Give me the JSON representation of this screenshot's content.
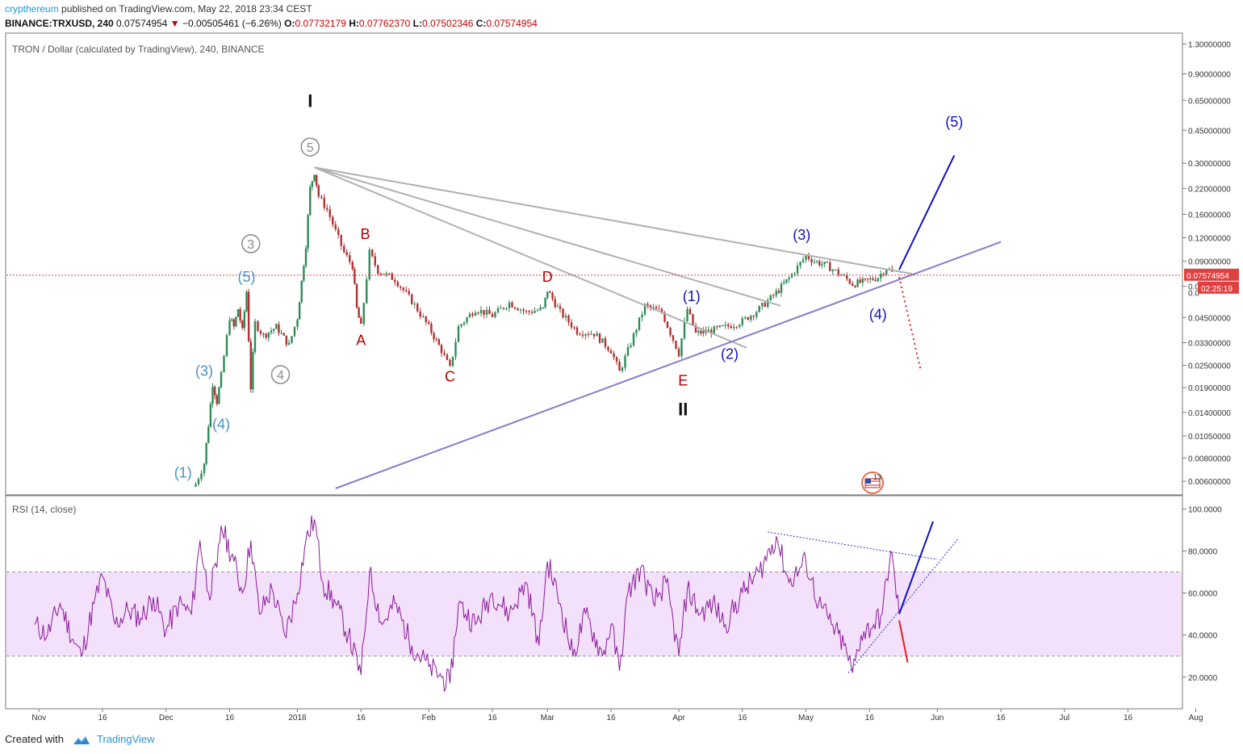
{
  "header": {
    "author": "crypthereum",
    "published_text": " published on TradingView.com, May 22, 2018 23:34 CEST",
    "symbol": "BINANCE:TRXUSD, 240",
    "price": "0.07574954",
    "change": "−0.00505461 (−6.26%)",
    "open_label": "O:",
    "open_value": "0.07732179",
    "high_label": "H:",
    "high_value": "0.07762370",
    "low_label": "L:",
    "low_value": "0.07502346",
    "close_label": "C:",
    "close_value": "0.07574954"
  },
  "footer": {
    "created_with": "Created with",
    "brand": "TradingView"
  },
  "colors": {
    "up": "#2e8b57",
    "down": "#b03030",
    "purple_line": "#8a7cc8",
    "gray_line": "#b0b0b0",
    "blue": "#1010c0",
    "red_label": "#b00000",
    "gray_label": "#8a8a8a",
    "light_blue": "#4a90c8",
    "rsi_line": "#8a1a9a",
    "rsi_band": "#f3e0fa",
    "price_line": "#e04040"
  },
  "chart_data": [
    {
      "type": "candlestick",
      "title": "TRON / Dollar (calculated by TradingView), 240, BINANCE",
      "scale": "log",
      "ylim": [
        0.0055,
        1.4
      ],
      "x_ticks": [
        "Nov",
        "16",
        "Dec",
        "16",
        "2018",
        "16",
        "Feb",
        "16",
        "Mar",
        "16",
        "Apr",
        "16",
        "May",
        "16",
        "Jun",
        "16",
        "Jul",
        "16",
        "Aug"
      ],
      "y_ticks": [
        "1.30000000",
        "0.90000000",
        "0.65000000",
        "0.45000000",
        "0.30000000",
        "0.22000000",
        "0.16000000",
        "0.12000000",
        "0.09000000",
        "0.06600000",
        "0.04500000",
        "0.03300000",
        "0.02500000",
        "0.01900000",
        "0.01400000",
        "0.01050000",
        "0.00800000",
        "0.00600000"
      ],
      "y_tick_values": [
        1.3,
        0.9,
        0.65,
        0.45,
        0.3,
        0.22,
        0.16,
        0.12,
        0.09,
        0.066,
        0.045,
        0.033,
        0.025,
        0.019,
        0.014,
        0.0105,
        0.008,
        0.006
      ],
      "y_hidden_tick": "0.0",
      "last_price_label": "0.07574954",
      "countdown_label": "02:25:19",
      "last_price": 0.07574954,
      "series": [
        {
          "name": "TRXUSD",
          "points": [
            [
              "Dec 8",
              0.0058
            ],
            [
              "Dec 10",
              0.0075
            ],
            [
              "Dec 11",
              0.012
            ],
            [
              "Dec 12",
              0.02
            ],
            [
              "Dec 13",
              0.016
            ],
            [
              "Dec 14",
              0.022
            ],
            [
              "Dec 16",
              0.045
            ],
            [
              "Dec 17",
              0.04
            ],
            [
              "Dec 18",
              0.05
            ],
            [
              "Dec 19",
              0.038
            ],
            [
              "Dec 20",
              0.062
            ],
            [
              "Dec 21",
              0.019
            ],
            [
              "Dec 22",
              0.042
            ],
            [
              "Dec 24",
              0.036
            ],
            [
              "Dec 27",
              0.04
            ],
            [
              "Dec 30",
              0.032
            ],
            [
              "Jan 1",
              0.045
            ],
            [
              "Jan 2",
              0.07
            ],
            [
              "Jan 3",
              0.11
            ],
            [
              "Jan 4",
              0.22
            ],
            [
              "Jan 5",
              0.27
            ],
            [
              "Jan 6",
              0.2
            ],
            [
              "Jan 8",
              0.17
            ],
            [
              "Jan 10",
              0.13
            ],
            [
              "Jan 12",
              0.1
            ],
            [
              "Jan 14",
              0.085
            ],
            [
              "Jan 15",
              0.05
            ],
            [
              "Jan 16",
              0.04
            ],
            [
              "Jan 18",
              0.1
            ],
            [
              "Jan 20",
              0.08
            ],
            [
              "Jan 24",
              0.072
            ],
            [
              "Jan 28",
              0.055
            ],
            [
              "Feb 1",
              0.04
            ],
            [
              "Feb 4",
              0.03
            ],
            [
              "Feb 6",
              0.024
            ],
            [
              "Feb 8",
              0.04
            ],
            [
              "Feb 12",
              0.05
            ],
            [
              "Feb 16",
              0.046
            ],
            [
              "Feb 20",
              0.054
            ],
            [
              "Feb 24",
              0.048
            ],
            [
              "Feb 28",
              0.05
            ],
            [
              "Mar 1",
              0.063
            ],
            [
              "Mar 4",
              0.048
            ],
            [
              "Mar 8",
              0.038
            ],
            [
              "Mar 12",
              0.037
            ],
            [
              "Mar 16",
              0.03
            ],
            [
              "Mar 18",
              0.023
            ],
            [
              "Mar 20",
              0.03
            ],
            [
              "Mar 24",
              0.052
            ],
            [
              "Mar 28",
              0.048
            ],
            [
              "Apr 1",
              0.029
            ],
            [
              "Apr 3",
              0.05
            ],
            [
              "Apr 5",
              0.037
            ],
            [
              "Apr 8",
              0.038
            ],
            [
              "Apr 12",
              0.04
            ],
            [
              "Apr 16",
              0.043
            ],
            [
              "Apr 20",
              0.05
            ],
            [
              "Apr 24",
              0.061
            ],
            [
              "Apr 27",
              0.073
            ],
            [
              "May 1",
              0.096
            ],
            [
              "May 3",
              0.09
            ],
            [
              "May 6",
              0.085
            ],
            [
              "May 10",
              0.074
            ],
            [
              "May 12",
              0.068
            ],
            [
              "May 15",
              0.07
            ],
            [
              "May 18",
              0.074
            ],
            [
              "May 20",
              0.083
            ],
            [
              "May 22",
              0.0757
            ]
          ]
        }
      ],
      "wave_labels": [
        {
          "text": "I",
          "style": "black-bold",
          "date": "Jan 4",
          "price": 0.6
        },
        {
          "text": "II",
          "style": "black-bold",
          "date": "Apr 2",
          "price": 0.0135
        },
        {
          "text": "5",
          "style": "gray-circle",
          "date": "Jan 4",
          "price": 0.345
        },
        {
          "text": "3",
          "style": "gray-circle",
          "date": "Dec 21",
          "price": 0.105
        },
        {
          "text": "4",
          "style": "gray-circle",
          "date": "Dec 28",
          "price": 0.021
        },
        {
          "text": "(5)",
          "style": "light-blue",
          "date": "Dec 20",
          "price": 0.07
        },
        {
          "text": "(3)",
          "style": "light-blue",
          "date": "Dec 10",
          "price": 0.022
        },
        {
          "text": "(4)",
          "style": "light-blue",
          "date": "Dec 14",
          "price": 0.0114
        },
        {
          "text": "(1)",
          "style": "light-blue",
          "date": "Dec 5",
          "price": 0.0063
        },
        {
          "text": "A",
          "style": "red",
          "date": "Jan 16",
          "price": 0.032
        },
        {
          "text": "B",
          "style": "red",
          "date": "Jan 17",
          "price": 0.118
        },
        {
          "text": "C",
          "style": "red",
          "date": "Feb 6",
          "price": 0.0205
        },
        {
          "text": "D",
          "style": "red",
          "date": "Mar 1",
          "price": 0.07
        },
        {
          "text": "E",
          "style": "red",
          "date": "Apr 2",
          "price": 0.0195
        },
        {
          "text": "(1)",
          "style": "blue",
          "date": "Apr 4",
          "price": 0.055
        },
        {
          "text": "(2)",
          "style": "blue",
          "date": "Apr 13",
          "price": 0.027
        },
        {
          "text": "(3)",
          "style": "blue",
          "date": "Apr 30",
          "price": 0.117
        },
        {
          "text": "(4)",
          "style": "blue",
          "date": "May 18",
          "price": 0.044
        },
        {
          "text": "(5)",
          "style": "blue",
          "date": "Jun 5",
          "price": 0.47
        }
      ],
      "trend_lines": [
        {
          "color": "gray",
          "from": [
            "Jan 5",
            0.285
          ],
          "to": [
            "May 26",
            0.077
          ]
        },
        {
          "color": "gray",
          "from": [
            "Jan 5",
            0.285
          ],
          "to": [
            "Apr 25",
            0.052
          ]
        },
        {
          "color": "gray",
          "from": [
            "Jan 5",
            0.285
          ],
          "to": [
            "Apr 17",
            0.031
          ]
        },
        {
          "color": "purple",
          "from": [
            "Jan 10",
            0.0055
          ],
          "to": [
            "Jun 16",
            0.114
          ]
        },
        {
          "color": "blue",
          "from": [
            "May 23",
            0.081
          ],
          "to": [
            "Jun 5",
            0.33
          ]
        },
        {
          "color": "red-dotted",
          "from": [
            "May 23",
            0.074
          ],
          "to": [
            "May 28",
            0.024
          ]
        }
      ]
    },
    {
      "type": "line",
      "title": "RSI (14, close)",
      "ylim": [
        8,
        104
      ],
      "y_ticks": [
        "100.0000",
        "80.0000",
        "60.0000",
        "40.0000",
        "20.0000"
      ],
      "y_tick_values": [
        100,
        80,
        60,
        40,
        20
      ],
      "bands": [
        30,
        70
      ],
      "series": [
        {
          "name": "RSI",
          "points": [
            [
              "Oct 31",
              45
            ],
            [
              "Nov 3",
              40
            ],
            [
              "Nov 6",
              55
            ],
            [
              "Nov 9",
              38
            ],
            [
              "Nov 11",
              30
            ],
            [
              "Nov 14",
              55
            ],
            [
              "Nov 16",
              68
            ],
            [
              "Nov 19",
              45
            ],
            [
              "Nov 22",
              52
            ],
            [
              "Nov 25",
              48
            ],
            [
              "Nov 28",
              58
            ],
            [
              "Dec 1",
              42
            ],
            [
              "Dec 4",
              55
            ],
            [
              "Dec 7",
              50
            ],
            [
              "Dec 9",
              85
            ],
            [
              "Dec 11",
              60
            ],
            [
              "Dec 13",
              72
            ],
            [
              "Dec 14",
              92
            ],
            [
              "Dec 17",
              75
            ],
            [
              "Dec 19",
              60
            ],
            [
              "Dec 21",
              85
            ],
            [
              "Dec 23",
              50
            ],
            [
              "Dec 26",
              62
            ],
            [
              "Dec 29",
              40
            ],
            [
              "Jan 1",
              60
            ],
            [
              "Jan 3",
              85
            ],
            [
              "Jan 5",
              95
            ],
            [
              "Jan 7",
              65
            ],
            [
              "Jan 10",
              55
            ],
            [
              "Jan 13",
              40
            ],
            [
              "Jan 16",
              21
            ],
            [
              "Jan 18",
              70
            ],
            [
              "Jan 21",
              45
            ],
            [
              "Jan 24",
              55
            ],
            [
              "Jan 28",
              35
            ],
            [
              "Feb 1",
              25
            ],
            [
              "Feb 4",
              20
            ],
            [
              "Feb 6",
              17
            ],
            [
              "Feb 8",
              55
            ],
            [
              "Feb 12",
              45
            ],
            [
              "Feb 16",
              60
            ],
            [
              "Feb 20",
              50
            ],
            [
              "Feb 24",
              65
            ],
            [
              "Feb 27",
              35
            ],
            [
              "Mar 1",
              75
            ],
            [
              "Mar 4",
              55
            ],
            [
              "Mar 7",
              30
            ],
            [
              "Mar 10",
              50
            ],
            [
              "Mar 14",
              30
            ],
            [
              "Mar 16",
              45
            ],
            [
              "Mar 18",
              23
            ],
            [
              "Mar 20",
              60
            ],
            [
              "Mar 23",
              72
            ],
            [
              "Mar 26",
              55
            ],
            [
              "Mar 29",
              65
            ],
            [
              "Apr 1",
              30
            ],
            [
              "Apr 3",
              62
            ],
            [
              "Apr 6",
              50
            ],
            [
              "Apr 9",
              55
            ],
            [
              "Apr 12",
              45
            ],
            [
              "Apr 16",
              60
            ],
            [
              "Apr 20",
              70
            ],
            [
              "Apr 24",
              87
            ],
            [
              "Apr 27",
              65
            ],
            [
              "May 1",
              75
            ],
            [
              "May 4",
              55
            ],
            [
              "May 7",
              45
            ],
            [
              "May 10",
              35
            ],
            [
              "May 12",
              22
            ],
            [
              "May 14",
              40
            ],
            [
              "May 17",
              45
            ],
            [
              "May 19",
              50
            ],
            [
              "May 21",
              80
            ],
            [
              "May 23",
              50
            ]
          ]
        }
      ],
      "trend_lines": [
        {
          "color": "blue-dotted",
          "from": [
            "Apr 22",
            89
          ],
          "to": [
            "Jun 1",
            76
          ]
        },
        {
          "color": "blue-dotted",
          "from": [
            "May 11",
            22
          ],
          "to": [
            "Jun 6",
            86
          ]
        },
        {
          "color": "blue",
          "from": [
            "May 23",
            50
          ],
          "to": [
            "May 31",
            94
          ]
        },
        {
          "color": "red",
          "from": [
            "May 23",
            47
          ],
          "to": [
            "May 25",
            27
          ]
        }
      ]
    }
  ]
}
